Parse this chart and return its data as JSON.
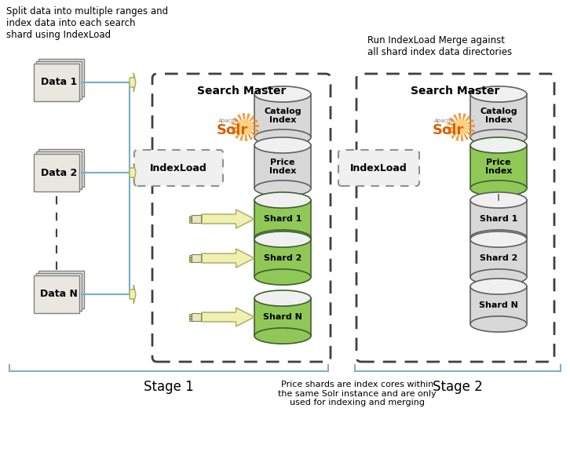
{
  "title_left": "Split data into multiple ranges and\nindex data into each search\nshard using IndexLoad",
  "title_right": "Run IndexLoad Merge against\nall shard index data directories",
  "stage1_label": "Stage 1",
  "stage2_label": "Stage 2",
  "bottom_note": "Price shards are index cores within\nthe same Solr instance and are only\nused for indexing and merging",
  "search_master_label": "Search Master",
  "indexload_label": "IndexLoad",
  "data_labels": [
    "Data 1",
    "Data 2",
    "Data N"
  ],
  "shard_labels": [
    "Shard 1",
    "Shard 2",
    "Shard N"
  ],
  "bg_color": "#ffffff",
  "cyl_gray": "#d8d8d8",
  "cyl_green": "#90c858",
  "cyl_edge_gray": "#606060",
  "cyl_edge_green": "#406030",
  "arrow_face": "#f0f0b0",
  "arrow_edge": "#a8a860",
  "line_color": "#70b0c8",
  "bracket_color": "#80b0c8",
  "text_color": "#000000",
  "data_box_face": "#e8e8e0",
  "data_box_edge": "#808080",
  "dash_box_edge": "#404040",
  "il_box_edge": "#909090",
  "il_box_face": "#f0f0f0",
  "solr_color": "#d86000",
  "sun_color": "#f09020"
}
